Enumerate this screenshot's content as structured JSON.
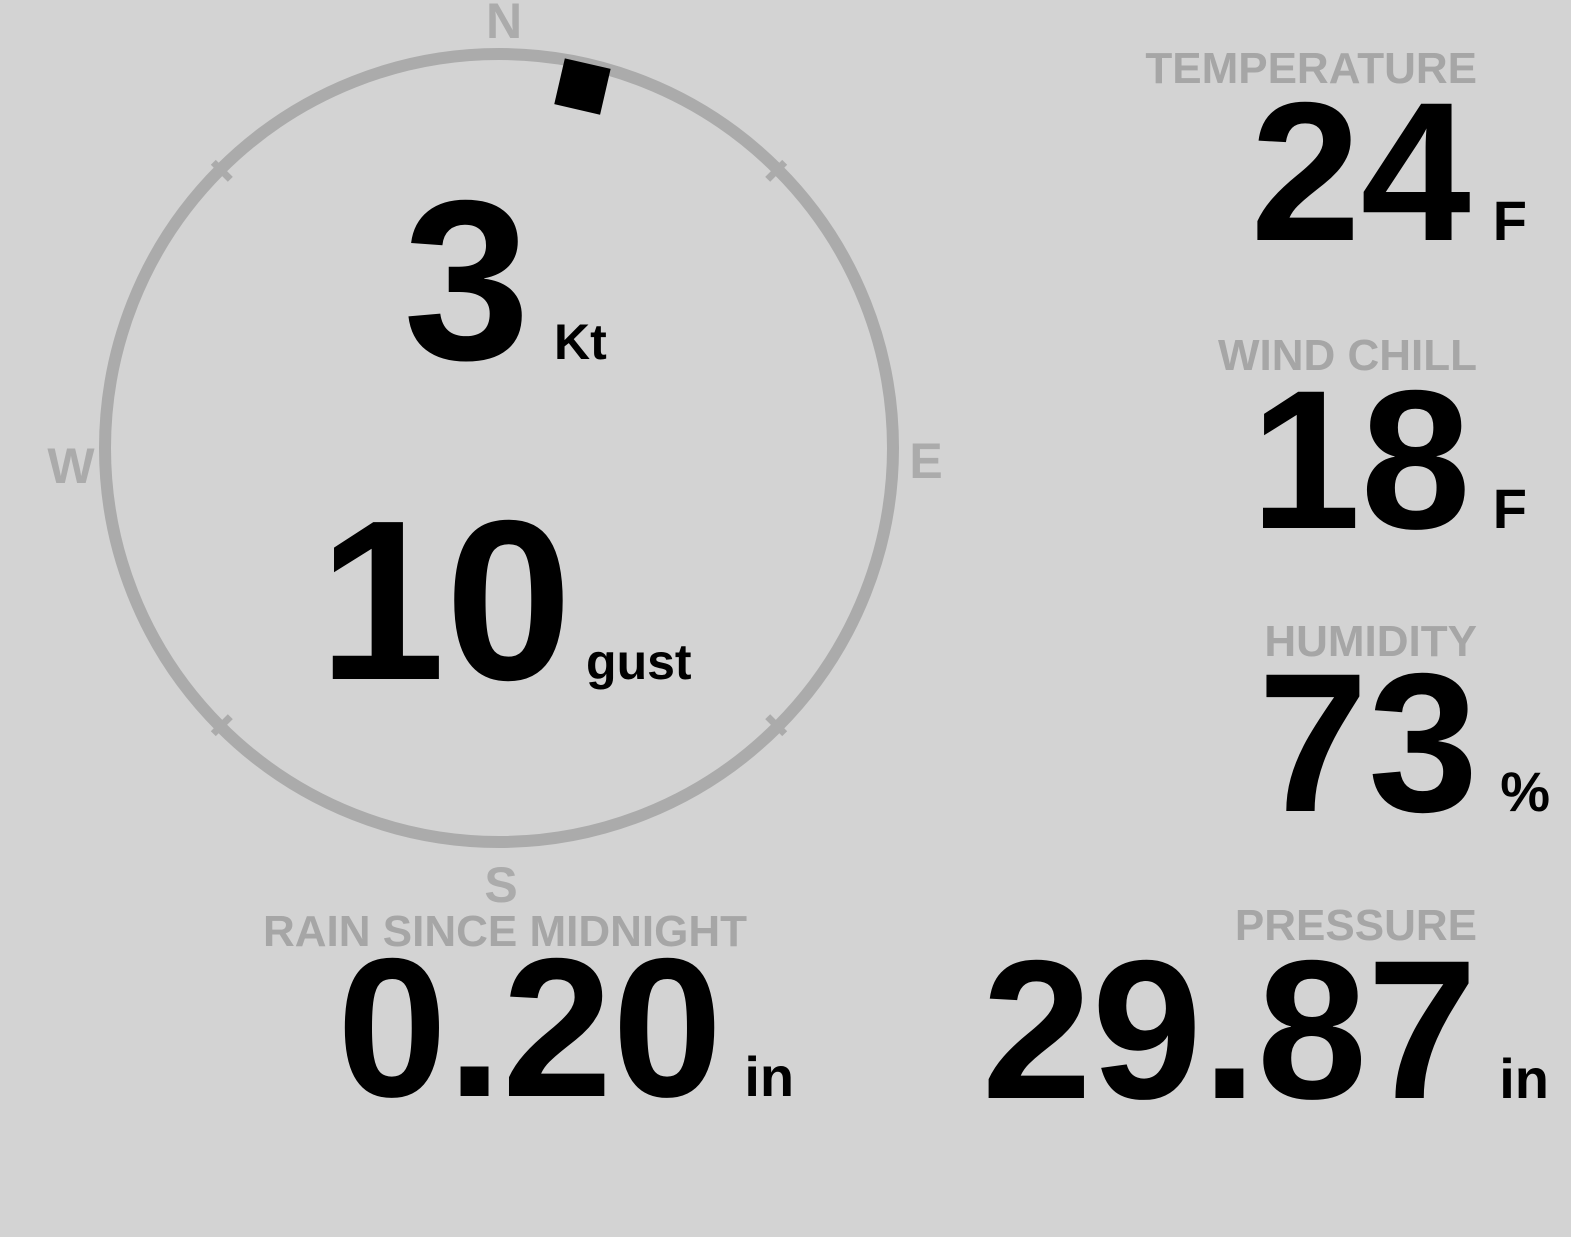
{
  "colors": {
    "background": "#d3d3d3",
    "muted_gray": "#a9a9a9",
    "label_gray": "#a6a6a6",
    "value_black": "#000000"
  },
  "compass": {
    "cardinals": {
      "north": "N",
      "east": "E",
      "south": "S",
      "west": "W"
    },
    "wind_speed": "3",
    "wind_speed_unit": "Kt",
    "wind_gust": "10",
    "wind_gust_unit": "gust",
    "wind_direction_deg": 13
  },
  "gauges": {
    "temperature": {
      "label": "TEMPERATURE",
      "value": "24",
      "unit": "F"
    },
    "wind_chill": {
      "label": "WIND CHILL",
      "value": "18",
      "unit": "F"
    },
    "humidity": {
      "label": "HUMIDITY",
      "value": "73",
      "unit": "%"
    },
    "rain_since_midnight": {
      "label": "RAIN SINCE MIDNIGHT",
      "value": "0.20",
      "unit": "in"
    },
    "pressure": {
      "label": "PRESSURE",
      "value": "29.87",
      "unit": "in"
    }
  }
}
